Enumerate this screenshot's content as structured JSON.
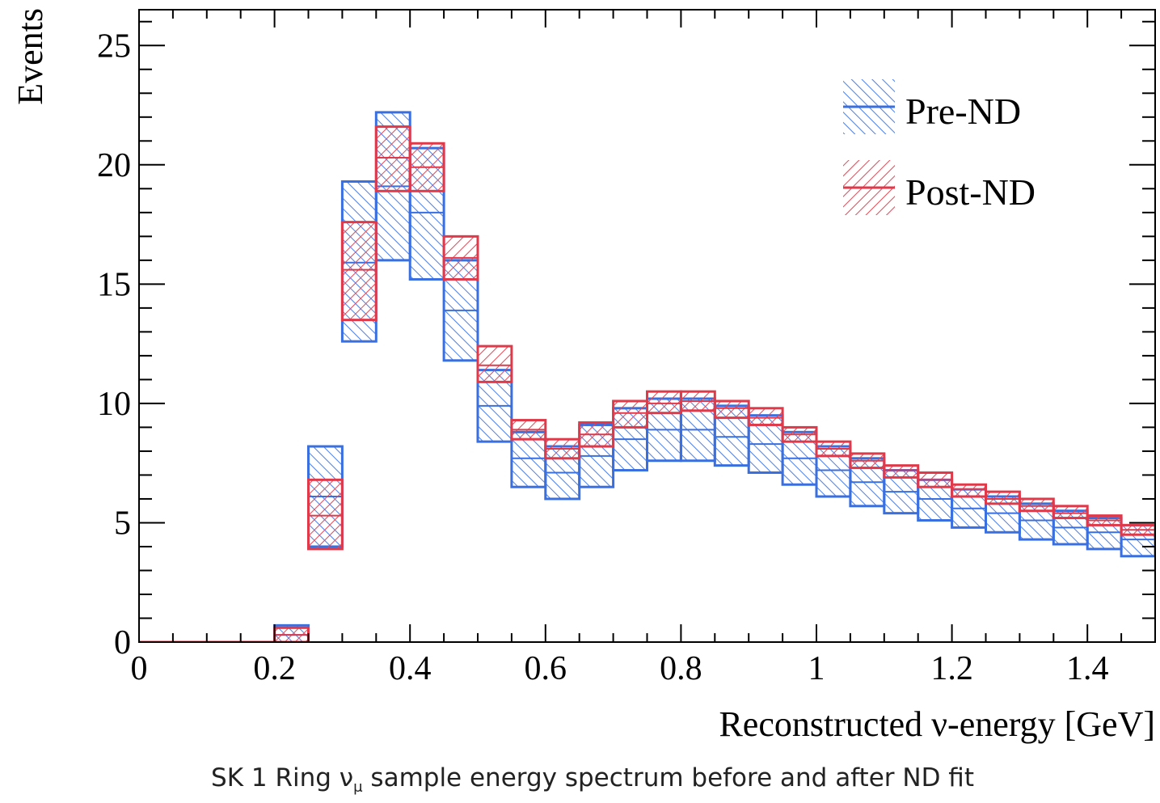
{
  "chart_data": {
    "type": "bar",
    "xlabel": "Reconstructed ν-energy [GeV]",
    "ylabel": "Events",
    "xlim": [
      0,
      1.5
    ],
    "ylim": [
      0,
      26.5
    ],
    "x_ticks": [
      "0",
      "0.2",
      "0.4",
      "0.6",
      "0.8",
      "1",
      "1.2",
      "1.4"
    ],
    "y_ticks": [
      "0",
      "5",
      "10",
      "15",
      "20",
      "25"
    ],
    "bin_edges": [
      0,
      0.05,
      0.1,
      0.15,
      0.2,
      0.25,
      0.3,
      0.35,
      0.4,
      0.45,
      0.5,
      0.55,
      0.6,
      0.65,
      0.7,
      0.75,
      0.8,
      0.85,
      0.9,
      0.95,
      1.0,
      1.05,
      1.1,
      1.15,
      1.2,
      1.25,
      1.3,
      1.35,
      1.4,
      1.45,
      1.5
    ],
    "legend_position": "top-right",
    "series": [
      {
        "name": "Pre-ND",
        "color": "#3a6fe0",
        "low": [
          0,
          0,
          0,
          0,
          0.0,
          4.0,
          12.6,
          16.0,
          15.2,
          11.8,
          8.4,
          6.5,
          6.0,
          6.5,
          7.2,
          7.6,
          7.6,
          7.4,
          7.1,
          6.6,
          6.1,
          5.7,
          5.4,
          5.1,
          4.8,
          4.6,
          4.3,
          4.1,
          3.9,
          3.6
        ],
        "high": [
          0,
          0,
          0,
          0,
          0.7,
          8.2,
          19.3,
          22.2,
          20.7,
          16.0,
          11.4,
          8.8,
          8.2,
          9.1,
          9.8,
          10.2,
          10.2,
          9.9,
          9.5,
          8.8,
          8.2,
          7.7,
          7.2,
          6.8,
          6.4,
          6.1,
          5.8,
          5.5,
          5.2,
          4.9
        ],
        "central": [
          0,
          0,
          0,
          0,
          0.3,
          6.1,
          15.9,
          19.1,
          18.0,
          13.9,
          9.9,
          7.7,
          7.1,
          7.8,
          8.5,
          8.9,
          8.9,
          8.6,
          8.3,
          7.7,
          7.2,
          6.7,
          6.3,
          6.0,
          5.6,
          5.4,
          5.1,
          4.8,
          4.6,
          4.3
        ]
      },
      {
        "name": "Post-ND",
        "color": "#e03a4a",
        "low": [
          0,
          0,
          0,
          0,
          0.0,
          3.9,
          13.5,
          18.9,
          18.9,
          15.2,
          10.9,
          8.5,
          7.7,
          8.2,
          9.0,
          9.6,
          9.7,
          9.4,
          9.1,
          8.4,
          7.8,
          7.3,
          6.9,
          6.5,
          6.1,
          5.8,
          5.5,
          5.2,
          4.9,
          4.5
        ],
        "high": [
          0,
          0,
          0,
          0,
          0.6,
          6.8,
          17.6,
          21.6,
          20.9,
          17.0,
          12.4,
          9.3,
          8.5,
          9.2,
          10.1,
          10.5,
          10.5,
          10.1,
          9.8,
          9.0,
          8.4,
          7.9,
          7.4,
          7.1,
          6.6,
          6.3,
          6.0,
          5.7,
          5.3,
          4.9
        ],
        "central": [
          0,
          0,
          0,
          0,
          0.3,
          5.3,
          15.6,
          20.3,
          19.9,
          16.1,
          11.6,
          8.9,
          8.1,
          8.7,
          9.6,
          10.0,
          10.1,
          9.8,
          9.4,
          8.7,
          8.1,
          7.6,
          7.2,
          6.8,
          6.4,
          6.0,
          5.7,
          5.4,
          5.1,
          4.7
        ]
      }
    ]
  },
  "caption": {
    "prefix": "SK 1 Ring ν",
    "subscript": "μ",
    "suffix": " sample energy spectrum before and after ND fit"
  }
}
